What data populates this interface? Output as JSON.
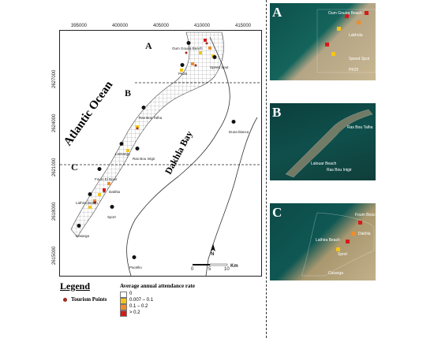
{
  "colors": {
    "ocean": "#ffffff",
    "land_line": "#333333",
    "grid": "#666666",
    "rate_zero": "#ffffff",
    "rate_low": "#f5c518",
    "rate_mid": "#f08c2a",
    "rate_high": "#d61a1a",
    "tourism_point": "#a12b1f",
    "satellite_sea": "#0e5a57",
    "satellite_land": "#b7a78a"
  },
  "main_map": {
    "x_ticks": [
      "395000",
      "400000",
      "405000",
      "410000",
      "415000"
    ],
    "y_ticks": [
      "2627000",
      "2624000",
      "2621000",
      "2618000",
      "2615000"
    ],
    "ocean_label": "Atlantic Ocean",
    "bay_label": "Dakhla Bay",
    "zones": [
      "A",
      "B",
      "C"
    ],
    "places": {
      "oum_gouira": "Oum Gouira Beach",
      "puerto": "PK25",
      "speed_spot": "Speed Spot",
      "ras_bou_talha": "Ras Bou Talha",
      "lassarga": "Lassarga",
      "foum_el_bouir": "Foum El Bouir",
      "ras_bou_intgir": "Ras Bou Intgir",
      "duna_blanca": "Duna blanca",
      "lassarga_beach": "Lalsarga Beach",
      "lathira_beach": "Lathira Beach",
      "sport": "Sport",
      "casarga": "Casarga",
      "pacello": "Pacellio",
      "dakhla": "Dakhla"
    },
    "scale": {
      "labels": [
        "0",
        "5",
        "10"
      ],
      "unit": "Km"
    },
    "north": "N"
  },
  "insets": [
    {
      "label": "A",
      "texts": [
        "Oum Gouira Beach",
        "Lakhola",
        "Speed Spot",
        "PK25"
      ]
    },
    {
      "label": "B",
      "texts": [
        "Ras Bou Talha",
        "Lalouar Beach",
        "Ras Bou Intgir"
      ]
    },
    {
      "label": "C",
      "texts": [
        "Foum Beach",
        "Lathira Beach",
        "Dakhla",
        "Sport",
        "Casarga"
      ]
    }
  ],
  "legend": {
    "title": "Legend",
    "tourism_points": "Tourism Points",
    "rate_title": "Average annual attendance rate",
    "classes": [
      "0",
      "0.007 – 0.1",
      "0.1 – 0.2",
      "> 0.2"
    ]
  }
}
